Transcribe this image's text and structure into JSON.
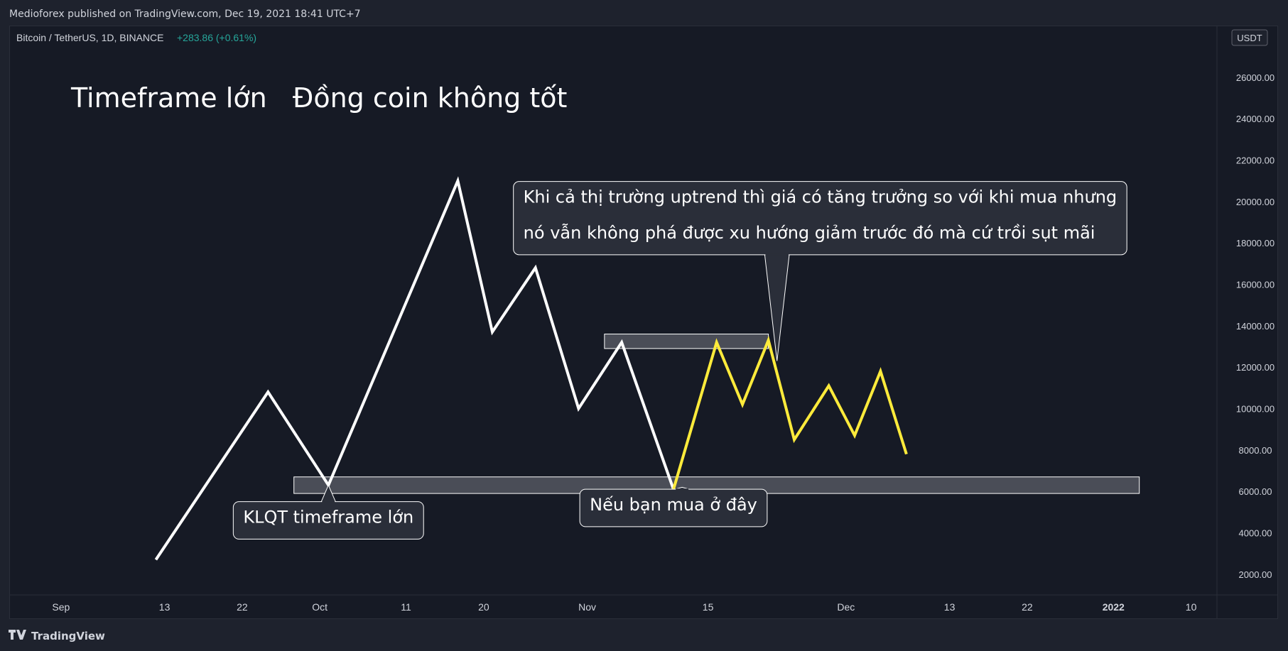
{
  "header": {
    "published": "Medioforex published on TradingView.com, Dec 19, 2021 18:41 UTC+7"
  },
  "symbol": {
    "name": "Bitcoin / TetherUS, 1D, BINANCE",
    "change": "+283.86 (+0.61%)"
  },
  "currency_badge": "USDT",
  "footer": {
    "brand": "TradingView"
  },
  "colors": {
    "background": "#161a25",
    "main_line": "#ffffff",
    "highlight_line": "#ffeb3b",
    "change_positive": "#26a69a",
    "callout_fill": "#2a2e39",
    "zone_fill": "#4a4d57"
  },
  "chart_data": {
    "type": "line",
    "title": "Timeframe lớn   Đồng coin không tốt",
    "y_ticks": [
      2000,
      4000,
      6000,
      8000,
      10000,
      12000,
      14000,
      16000,
      18000,
      20000,
      22000,
      24000,
      26000
    ],
    "x_ticks": [
      "Sep",
      "13",
      "22",
      "Oct",
      "11",
      "20",
      "Nov",
      "15",
      "Dec",
      "13",
      "22",
      "2022",
      "10"
    ],
    "x_tick_dates": [
      "2021-09-01",
      "2021-09-13",
      "2021-09-22",
      "2021-10-01",
      "2021-10-11",
      "2021-10-20",
      "2021-11-01",
      "2021-11-15",
      "2021-12-01",
      "2021-12-13",
      "2021-12-22",
      "2022-01-01",
      "2022-01-10"
    ],
    "ylim": [
      1000,
      28500
    ],
    "xlim": [
      "2021-08-26",
      "2022-01-13"
    ],
    "series": [
      {
        "color": "#ffffff",
        "points": [
          {
            "x": "2021-09-12",
            "y": 2700
          },
          {
            "x": "2021-09-25",
            "y": 10800
          },
          {
            "x": "2021-10-02",
            "y": 6300
          },
          {
            "x": "2021-10-17",
            "y": 21000
          },
          {
            "x": "2021-10-21",
            "y": 13700
          },
          {
            "x": "2021-10-26",
            "y": 16800
          },
          {
            "x": "2021-10-31",
            "y": 10000
          },
          {
            "x": "2021-11-05",
            "y": 13200
          },
          {
            "x": "2021-11-11",
            "y": 6100
          }
        ]
      },
      {
        "color": "#ffeb3b",
        "points": [
          {
            "x": "2021-11-11",
            "y": 6100
          },
          {
            "x": "2021-11-16",
            "y": 13200
          },
          {
            "x": "2021-11-19",
            "y": 10200
          },
          {
            "x": "2021-11-22",
            "y": 13300
          },
          {
            "x": "2021-11-25",
            "y": 8500
          },
          {
            "x": "2021-11-29",
            "y": 11100
          },
          {
            "x": "2021-12-02",
            "y": 8700
          },
          {
            "x": "2021-12-05",
            "y": 11800
          },
          {
            "x": "2021-12-08",
            "y": 7800
          }
        ]
      }
    ],
    "zones": [
      {
        "x_start": "2021-09-28",
        "x_end": "2022-01-04",
        "y_low": 5900,
        "y_high": 6700
      },
      {
        "x_start": "2021-11-03",
        "x_end": "2021-11-22",
        "y_low": 12900,
        "y_high": 13600
      }
    ],
    "annotations": [
      {
        "lines": [
          "KLQT timeframe lớn"
        ],
        "box_x": "2021-10-02",
        "box_y": 4600,
        "target_x": "2021-10-02",
        "target_y": 6300,
        "font_size": 24
      },
      {
        "lines": [
          "Nếu bạn mua ở đây"
        ],
        "box_x": "2021-11-11",
        "box_y": 5200,
        "target_x": "2021-11-12",
        "target_y": 6200,
        "font_size": 24
      },
      {
        "lines": [
          "Khi cả thị trường uptrend thì giá có tăng trưởng so với khi mua nhưng",
          "nó vẫn không phá được xu hướng giảm trước đó mà cứ trồi sụt mãi"
        ],
        "box_x": "2021-11-28",
        "box_y": 19200,
        "target_x": "2021-11-23",
        "target_y": 12300,
        "font_size": 24
      }
    ]
  }
}
